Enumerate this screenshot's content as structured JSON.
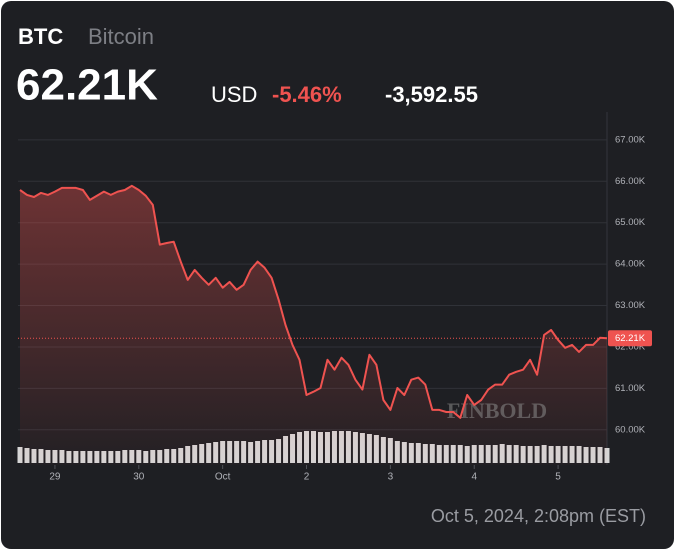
{
  "chart_data": {
    "type": "line",
    "symbol": "BTC",
    "name": "Bitcoin",
    "price": "62.21K",
    "currency": "USD",
    "change_pct": "-5.46%",
    "change": "-3,592.55",
    "timestamp": "Oct 5, 2024, 2:08pm (EST)",
    "watermark": "FINBOLD",
    "color": "#ef5350",
    "volume_color": "#d6d6d6",
    "current": {
      "value": 62210,
      "label": "62.21K"
    },
    "xlim": [
      0,
      84
    ],
    "xticks": [
      {
        "value": 5,
        "label": "29"
      },
      {
        "value": 17,
        "label": "30"
      },
      {
        "value": 29,
        "label": "Oct"
      },
      {
        "value": 41,
        "label": "2"
      },
      {
        "value": 53,
        "label": "3"
      },
      {
        "value": 65,
        "label": "4"
      },
      {
        "value": 77,
        "label": "5"
      }
    ],
    "ylim": [
      59150,
      67600
    ],
    "yticks": [
      {
        "value": 60000,
        "label": "60.00K"
      },
      {
        "value": 61000,
        "label": "61.00K"
      },
      {
        "value": 62000,
        "label": "62.00K"
      },
      {
        "value": 63000,
        "label": "63.00K"
      },
      {
        "value": 64000,
        "label": "64.00K"
      },
      {
        "value": 65000,
        "label": "65.00K"
      },
      {
        "value": 66000,
        "label": "66.00K"
      },
      {
        "value": 67000,
        "label": "67.00K"
      }
    ],
    "grid": true,
    "values": [
      65790,
      65670,
      65620,
      65720,
      65670,
      65750,
      65840,
      65840,
      65840,
      65790,
      65550,
      65650,
      65750,
      65670,
      65750,
      65790,
      65890,
      65790,
      65650,
      65430,
      64470,
      64510,
      64540,
      64060,
      63620,
      63860,
      63670,
      63500,
      63670,
      63430,
      63570,
      63380,
      63500,
      63860,
      64060,
      63910,
      63670,
      63140,
      62530,
      62050,
      61690,
      60840,
      60920,
      61010,
      61690,
      61450,
      61740,
      61570,
      61210,
      60970,
      61810,
      61570,
      60720,
      60480,
      61010,
      60840,
      61210,
      61260,
      61090,
      60480,
      60480,
      60430,
      60430,
      60290,
      60840,
      60600,
      60720,
      60970,
      61090,
      61090,
      61330,
      61400,
      61450,
      61690,
      61330,
      62290,
      62410,
      62170,
      61980,
      62050,
      61880,
      62050,
      62050,
      62220,
      62210
    ],
    "volume_lim": [
      0,
      40
    ],
    "volume": [
      16,
      15,
      14,
      14,
      13,
      13,
      13,
      12,
      12,
      12,
      12,
      12,
      12,
      12,
      12,
      13,
      13,
      13,
      12,
      13,
      13,
      14,
      14,
      15,
      17,
      18,
      19,
      20,
      21,
      22,
      22,
      22,
      22,
      21,
      22,
      23,
      23,
      24,
      27,
      29,
      31,
      32,
      32,
      31,
      31,
      32,
      32,
      32,
      31,
      30,
      29,
      28,
      26,
      25,
      22,
      21,
      20,
      20,
      19,
      19,
      18,
      18,
      18,
      18,
      17,
      18,
      18,
      18,
      18,
      19,
      18,
      18,
      17,
      17,
      17,
      18,
      17,
      17,
      17,
      17,
      17,
      16,
      16,
      16,
      15
    ]
  }
}
